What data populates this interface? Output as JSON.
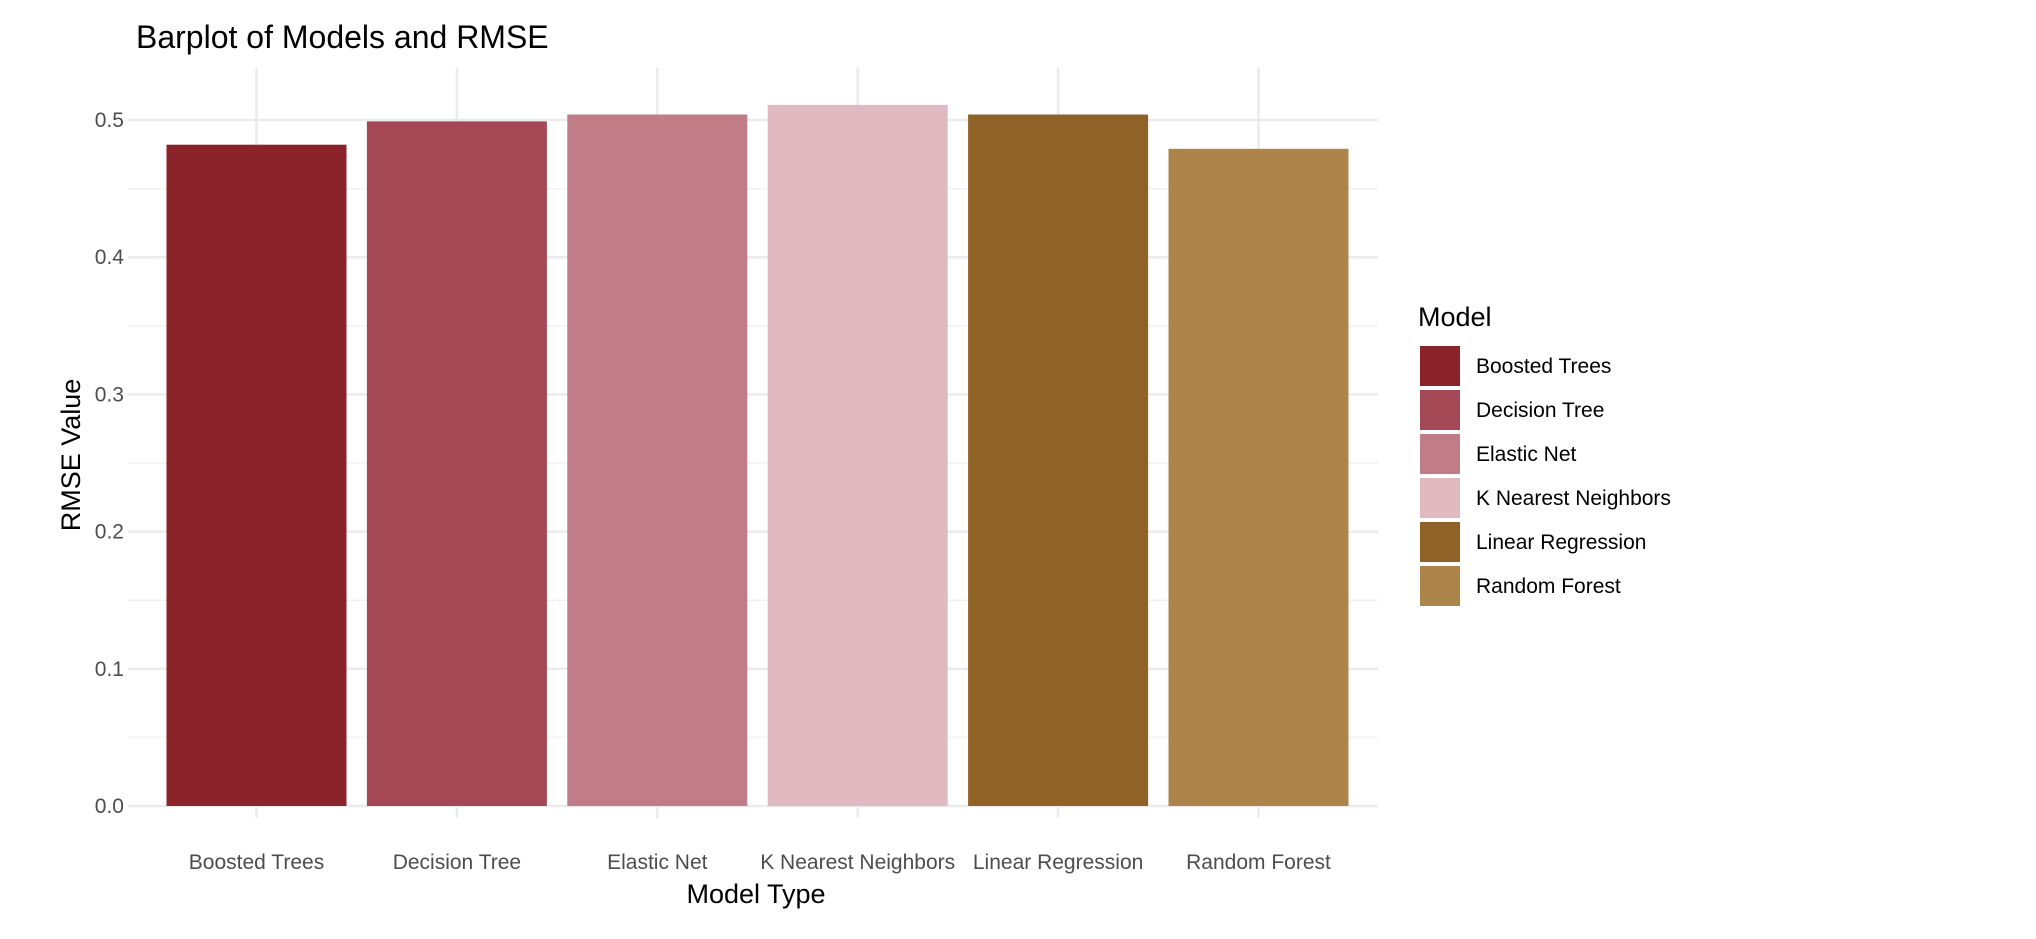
{
  "chart_data": {
    "type": "bar",
    "title": "Barplot of Models and RMSE",
    "xlabel": "Model Type",
    "ylabel": "RMSE Value",
    "categories": [
      "Boosted Trees",
      "Decision Tree",
      "Elastic Net",
      "K Nearest Neighbors",
      "Linear Regression",
      "Random Forest"
    ],
    "values": [
      0.482,
      0.499,
      0.504,
      0.511,
      0.504,
      0.479
    ],
    "colors": [
      "#8B232B",
      "#A54855",
      "#C07C87",
      "#E0B9C1",
      "#8F6228",
      "#AD854B"
    ],
    "ylim": [
      0,
      0.5
    ],
    "yticks": [
      0.0,
      0.1,
      0.2,
      0.3,
      0.4,
      0.5
    ],
    "ytick_labels": [
      "0.0",
      "0.1",
      "0.2",
      "0.3",
      "0.4",
      "0.5"
    ],
    "grid": true,
    "legend": {
      "title": "Model",
      "position": "right",
      "entries": [
        "Boosted Trees",
        "Decision Tree",
        "Elastic Net",
        "K Nearest Neighbors",
        "Linear Regression",
        "Random Forest"
      ]
    }
  }
}
